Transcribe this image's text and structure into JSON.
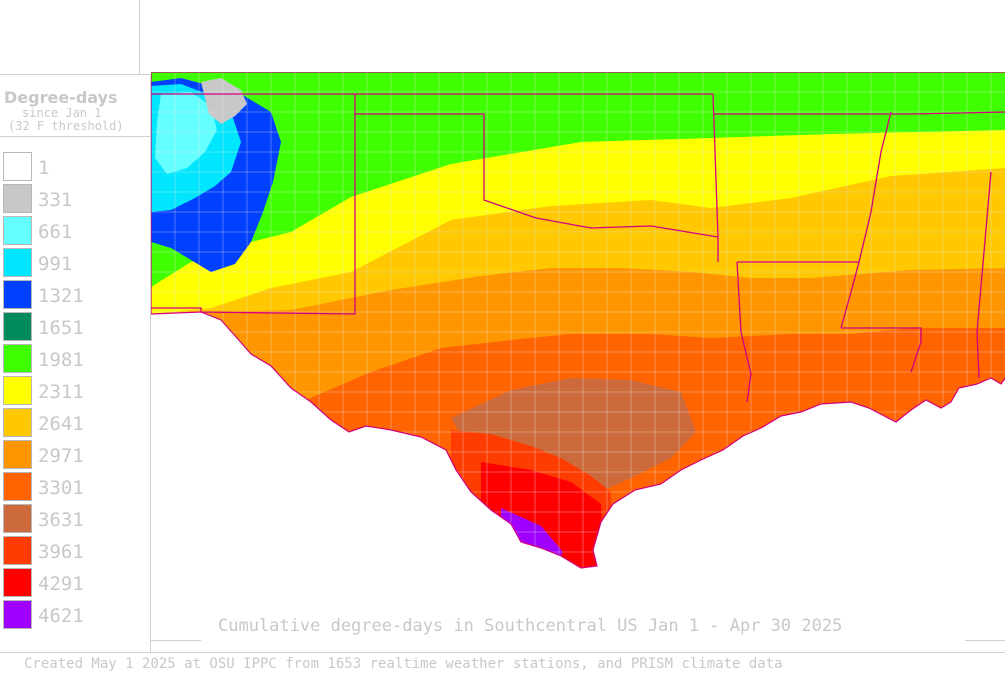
{
  "legend": {
    "title": "Degree-days",
    "subtitle1": "since Jan 1",
    "subtitle2": "(32 F threshold)",
    "items": [
      {
        "label": "1",
        "color": "#ffffff"
      },
      {
        "label": "331",
        "color": "#c8c8c8"
      },
      {
        "label": "661",
        "color": "#64ffff"
      },
      {
        "label": "991",
        "color": "#00e6ff"
      },
      {
        "label": "1321",
        "color": "#0040ff"
      },
      {
        "label": "1651",
        "color": "#008c5a"
      },
      {
        "label": "1981",
        "color": "#40ff00"
      },
      {
        "label": "2311",
        "color": "#ffff00"
      },
      {
        "label": "2641",
        "color": "#ffc800"
      },
      {
        "label": "2971",
        "color": "#ff9600"
      },
      {
        "label": "3301",
        "color": "#ff6400"
      },
      {
        "label": "3631",
        "color": "#cd6a3c"
      },
      {
        "label": "3961",
        "color": "#ff3c00"
      },
      {
        "label": "4291",
        "color": "#ff0000"
      },
      {
        "label": "4621",
        "color": "#a000ff"
      }
    ]
  },
  "map": {
    "title": "Cumulative degree-days in Southcentral US Jan 1 - Apr 30 2025",
    "border_color": "#d4007f",
    "county_color": "#e4e4e4"
  },
  "credit": "Created May 1 2025 at OSU IPPC from 1653 realtime weather stations, and PRISM climate data"
}
